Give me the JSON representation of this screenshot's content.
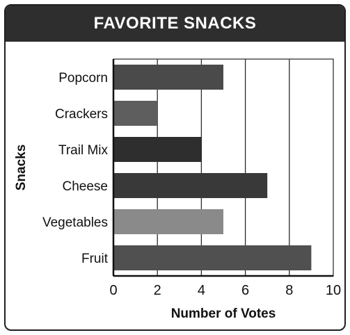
{
  "chart_data": {
    "type": "bar",
    "orientation": "horizontal",
    "title": "FAVORITE SNACKS",
    "xlabel": "Number of Votes",
    "ylabel": "Snacks",
    "categories": [
      "Popcorn",
      "Crackers",
      "Trail Mix",
      "Cheese",
      "Vegetables",
      "Fruit"
    ],
    "values": [
      5,
      2,
      4,
      7,
      5,
      9
    ],
    "xlim": [
      0,
      10
    ],
    "xticks": [
      "0",
      "2",
      "4",
      "6",
      "8",
      "10"
    ],
    "grid": "vertical",
    "bar_colors": [
      "#4a4a4a",
      "#5e5e5e",
      "#2e2e2e",
      "#393939",
      "#8a8a8a",
      "#505050"
    ]
  }
}
